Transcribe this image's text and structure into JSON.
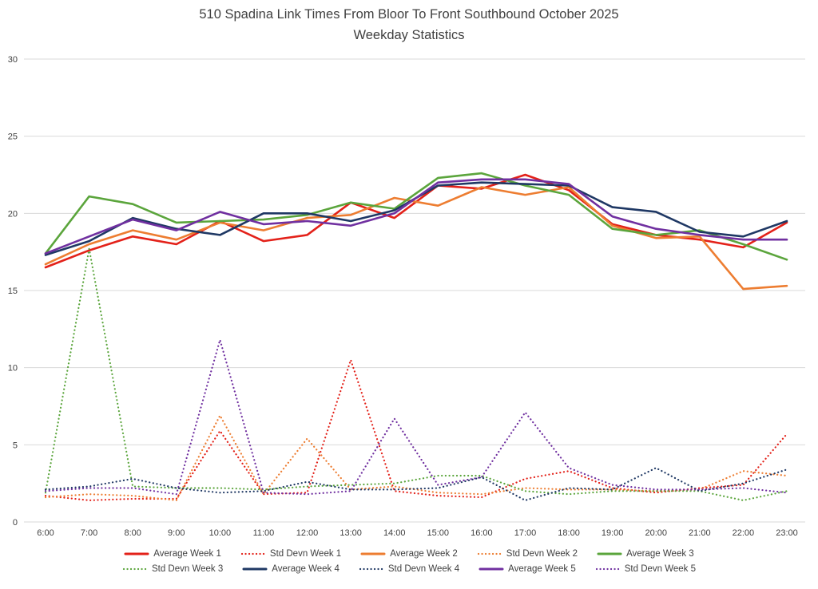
{
  "title": {
    "line1": "510 Spadina Link Times From Bloor To Front Southbound October 2025",
    "line2": "Weekday Statistics"
  },
  "chart_data": {
    "type": "line",
    "title": "510 Spadina Link Times From Bloor To Front Southbound October 2025",
    "subtitle": "Weekday Statistics",
    "xlabel": "",
    "ylabel": "",
    "ylim": [
      0,
      30
    ],
    "yticks": [
      0,
      5,
      10,
      15,
      20,
      25,
      30
    ],
    "grid": true,
    "legend_position": "bottom",
    "x": [
      "6:00",
      "7:00",
      "8:00",
      "9:00",
      "10:00",
      "11:00",
      "12:00",
      "13:00",
      "14:00",
      "15:00",
      "16:00",
      "17:00",
      "18:00",
      "19:00",
      "20:00",
      "21:00",
      "22:00",
      "23:00"
    ],
    "series": [
      {
        "name": "Average Week 1",
        "color": "#e32119",
        "style": "solid",
        "values": [
          16.5,
          17.6,
          18.5,
          18.0,
          19.5,
          18.2,
          18.6,
          20.7,
          19.7,
          21.8,
          21.6,
          22.5,
          21.5,
          19.3,
          18.6,
          18.3,
          17.8,
          19.4
        ]
      },
      {
        "name": "Std Devn Week 1",
        "color": "#e32119",
        "style": "dotted",
        "values": [
          1.7,
          1.4,
          1.5,
          1.5,
          5.9,
          1.8,
          1.9,
          10.5,
          2.0,
          1.7,
          1.6,
          2.8,
          3.3,
          2.2,
          1.9,
          2.2,
          2.4,
          5.7
        ]
      },
      {
        "name": "Average Week 2",
        "color": "#ed7d31",
        "style": "solid",
        "values": [
          16.7,
          18.0,
          18.9,
          18.3,
          19.4,
          18.9,
          19.7,
          19.9,
          21.0,
          20.5,
          21.7,
          21.2,
          21.7,
          19.2,
          18.4,
          18.5,
          15.1,
          15.3
        ]
      },
      {
        "name": "Std Devn Week 2",
        "color": "#ed7d31",
        "style": "dotted",
        "values": [
          1.6,
          1.8,
          1.7,
          1.4,
          6.9,
          1.8,
          5.4,
          2.1,
          2.3,
          1.9,
          1.8,
          2.2,
          2.1,
          2.1,
          2.0,
          2.1,
          3.3,
          3.0
        ]
      },
      {
        "name": "Average Week 3",
        "color": "#5ba53c",
        "style": "solid",
        "values": [
          17.4,
          21.1,
          20.6,
          19.4,
          19.5,
          19.6,
          19.9,
          20.7,
          20.3,
          22.3,
          22.6,
          21.8,
          21.2,
          19.0,
          18.6,
          18.9,
          18.0,
          17.0
        ]
      },
      {
        "name": "Std Devn Week 3",
        "color": "#5ba53c",
        "style": "dotted",
        "values": [
          1.9,
          17.7,
          2.3,
          2.2,
          2.2,
          2.1,
          2.3,
          2.4,
          2.5,
          3.0,
          3.0,
          2.0,
          1.8,
          2.0,
          2.0,
          2.0,
          1.4,
          2.0
        ]
      },
      {
        "name": "Average Week 4",
        "color": "#1f3864",
        "style": "solid",
        "values": [
          17.3,
          18.2,
          19.7,
          19.0,
          18.6,
          20.0,
          20.0,
          19.5,
          20.2,
          21.8,
          22.0,
          21.9,
          21.8,
          20.4,
          20.1,
          18.8,
          18.5,
          19.5
        ]
      },
      {
        "name": "Std Devn Week 4",
        "color": "#1f3864",
        "style": "dotted",
        "values": [
          2.1,
          2.3,
          2.8,
          2.2,
          1.9,
          2.0,
          2.6,
          2.1,
          2.1,
          2.2,
          2.9,
          1.4,
          2.2,
          2.1,
          3.5,
          2.0,
          2.5,
          3.4
        ]
      },
      {
        "name": "Average Week 5",
        "color": "#7030a0",
        "style": "solid",
        "values": [
          17.4,
          18.5,
          19.6,
          18.9,
          20.1,
          19.3,
          19.5,
          19.2,
          20.0,
          22.0,
          22.2,
          22.2,
          21.9,
          19.8,
          19.0,
          18.6,
          18.3,
          18.3
        ]
      },
      {
        "name": "Std Devn Week 5",
        "color": "#7030a0",
        "style": "dotted",
        "values": [
          2.0,
          2.2,
          2.2,
          1.8,
          11.8,
          1.9,
          1.8,
          2.0,
          6.7,
          2.4,
          2.9,
          7.1,
          3.5,
          2.4,
          2.1,
          2.1,
          2.2,
          1.9
        ]
      }
    ],
    "axis_text_color": "#404040",
    "gridline_color": "#d9d9d9"
  }
}
